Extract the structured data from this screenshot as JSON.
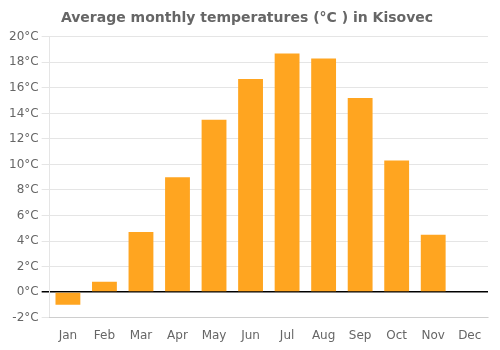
{
  "chart_data": {
    "type": "bar",
    "title": "Average monthly temperatures (°C ) in Kisovec",
    "categories": [
      "Jan",
      "Feb",
      "Mar",
      "Apr",
      "May",
      "Jun",
      "Jul",
      "Aug",
      "Sep",
      "Oct",
      "Nov",
      "Dec"
    ],
    "values": [
      -1.0,
      0.8,
      4.7,
      9.0,
      13.5,
      16.7,
      18.7,
      18.3,
      15.2,
      10.3,
      4.5,
      0.0
    ],
    "color": "#FFA520",
    "ylim": [
      -2,
      20
    ],
    "yticks": [
      {
        "value": -2,
        "label": "-2°C"
      },
      {
        "value": 0,
        "label": "0°C"
      },
      {
        "value": 2,
        "label": "2°C"
      },
      {
        "value": 4,
        "label": "4°C"
      },
      {
        "value": 6,
        "label": "6°C"
      },
      {
        "value": 8,
        "label": "8°C"
      },
      {
        "value": 10,
        "label": "10°C"
      },
      {
        "value": 12,
        "label": "12°C"
      },
      {
        "value": 14,
        "label": "14°C"
      },
      {
        "value": 16,
        "label": "16°C"
      },
      {
        "value": 18,
        "label": "18°C"
      },
      {
        "value": 20,
        "label": "20°C"
      }
    ],
    "grid": true
  }
}
